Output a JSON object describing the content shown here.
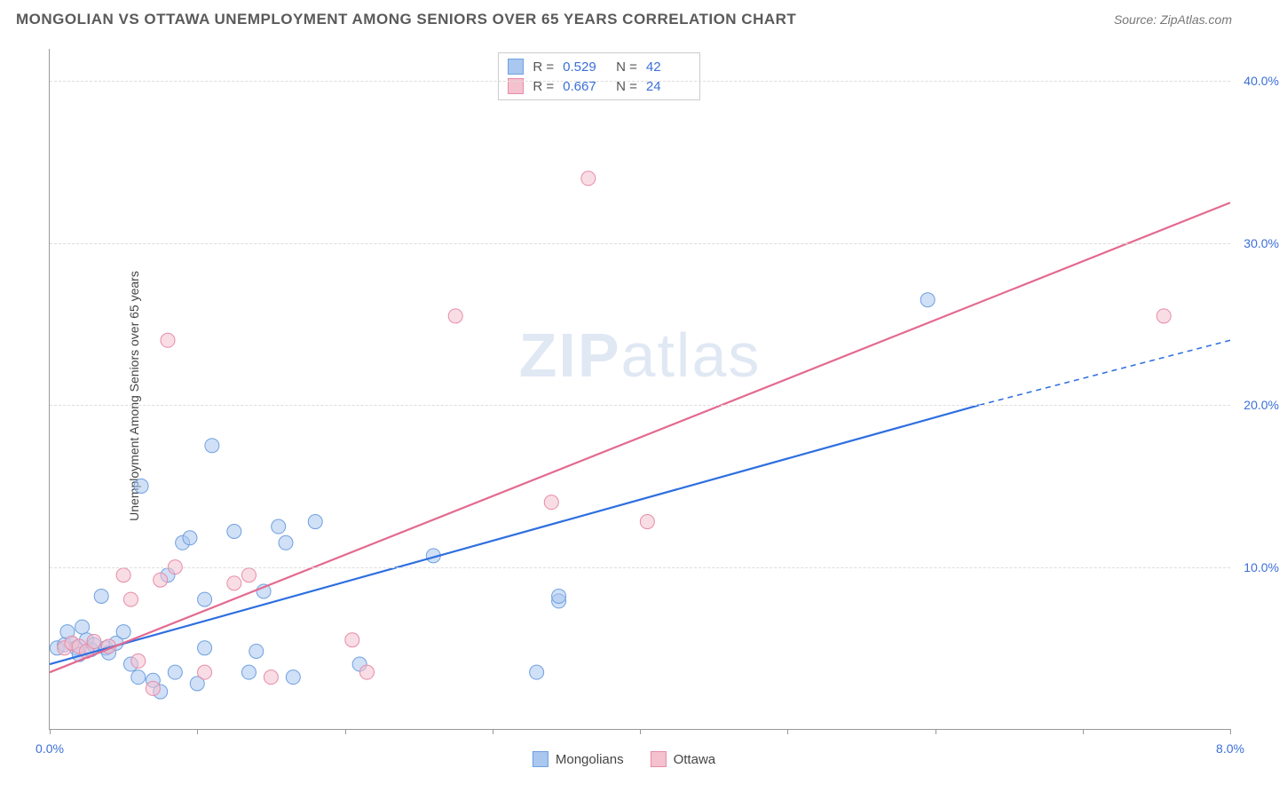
{
  "header": {
    "title": "MONGOLIAN VS OTTAWA UNEMPLOYMENT AMONG SENIORS OVER 65 YEARS CORRELATION CHART",
    "source": "Source: ZipAtlas.com"
  },
  "chart": {
    "type": "scatter",
    "ylabel": "Unemployment Among Seniors over 65 years",
    "xlim": [
      0,
      8.0
    ],
    "ylim": [
      0,
      42
    ],
    "x_ticks": [
      0.0,
      1.0,
      2.0,
      3.0,
      4.0,
      5.0,
      6.0,
      7.0,
      8.0
    ],
    "x_tick_labels": {
      "0": "0.0%",
      "8": "8.0%"
    },
    "y_gridlines": [
      10.0,
      20.0,
      30.0,
      40.0
    ],
    "y_tick_labels": [
      "10.0%",
      "20.0%",
      "30.0%",
      "40.0%"
    ],
    "background_color": "#ffffff",
    "grid_color": "#dddddd",
    "axis_color": "#999999",
    "label_color": "#3b6fd8",
    "marker_radius": 8,
    "marker_opacity": 0.55,
    "line_width": 2.2,
    "watermark": {
      "text_a": "ZIP",
      "text_b": "atlas"
    },
    "series": [
      {
        "name": "Mongolians",
        "color_fill": "#a9c7ef",
        "color_stroke": "#6fa0e0",
        "line_color": "#2e6fe0",
        "R": "0.529",
        "N": "42",
        "trend": {
          "x1": 0.0,
          "y1": 4.0,
          "x2_solid": 6.3,
          "y2_solid": 20.0,
          "x2": 8.0,
          "y2": 24.0
        },
        "points": [
          [
            0.05,
            5.0
          ],
          [
            0.1,
            5.2
          ],
          [
            0.12,
            6.0
          ],
          [
            0.15,
            5.3
          ],
          [
            0.18,
            5.0
          ],
          [
            0.2,
            4.6
          ],
          [
            0.22,
            6.3
          ],
          [
            0.25,
            5.5
          ],
          [
            0.28,
            4.9
          ],
          [
            0.3,
            5.2
          ],
          [
            0.35,
            8.2
          ],
          [
            0.38,
            5.0
          ],
          [
            0.4,
            4.7
          ],
          [
            0.45,
            5.3
          ],
          [
            0.5,
            6.0
          ],
          [
            0.55,
            4.0
          ],
          [
            0.6,
            3.2
          ],
          [
            0.62,
            15.0
          ],
          [
            0.7,
            3.0
          ],
          [
            0.75,
            2.3
          ],
          [
            0.8,
            9.5
          ],
          [
            0.85,
            3.5
          ],
          [
            0.9,
            11.5
          ],
          [
            0.95,
            11.8
          ],
          [
            1.0,
            2.8
          ],
          [
            1.05,
            5.0
          ],
          [
            1.05,
            8.0
          ],
          [
            1.1,
            17.5
          ],
          [
            1.25,
            12.2
          ],
          [
            1.35,
            3.5
          ],
          [
            1.4,
            4.8
          ],
          [
            1.45,
            8.5
          ],
          [
            1.55,
            12.5
          ],
          [
            1.6,
            11.5
          ],
          [
            1.65,
            3.2
          ],
          [
            1.8,
            12.8
          ],
          [
            2.1,
            4.0
          ],
          [
            2.6,
            10.7
          ],
          [
            3.3,
            3.5
          ],
          [
            3.45,
            7.9
          ],
          [
            5.95,
            26.5
          ],
          [
            3.45,
            8.2
          ]
        ]
      },
      {
        "name": "Ottawa",
        "color_fill": "#f4c1cf",
        "color_stroke": "#e88ba8",
        "line_color": "#e36a8f",
        "R": "0.667",
        "N": "24",
        "trend": {
          "x1": 0.0,
          "y1": 3.5,
          "x2_solid": 8.0,
          "y2_solid": 32.5,
          "x2": 8.0,
          "y2": 32.5
        },
        "points": [
          [
            0.1,
            5.0
          ],
          [
            0.15,
            5.3
          ],
          [
            0.2,
            5.1
          ],
          [
            0.25,
            4.8
          ],
          [
            0.3,
            5.4
          ],
          [
            0.4,
            5.1
          ],
          [
            0.5,
            9.5
          ],
          [
            0.55,
            8.0
          ],
          [
            0.6,
            4.2
          ],
          [
            0.7,
            2.5
          ],
          [
            0.75,
            9.2
          ],
          [
            0.8,
            24.0
          ],
          [
            0.85,
            10.0
          ],
          [
            1.05,
            3.5
          ],
          [
            1.25,
            9.0
          ],
          [
            1.35,
            9.5
          ],
          [
            1.5,
            3.2
          ],
          [
            2.05,
            5.5
          ],
          [
            2.15,
            3.5
          ],
          [
            2.75,
            25.5
          ],
          [
            3.4,
            14.0
          ],
          [
            3.65,
            34.0
          ],
          [
            4.05,
            12.8
          ],
          [
            7.55,
            25.5
          ]
        ]
      }
    ]
  },
  "legend_bottom": {
    "items": [
      {
        "label": "Mongolians",
        "fill": "#a9c7ef",
        "stroke": "#6fa0e0"
      },
      {
        "label": "Ottawa",
        "fill": "#f4c1cf",
        "stroke": "#e88ba8"
      }
    ]
  }
}
